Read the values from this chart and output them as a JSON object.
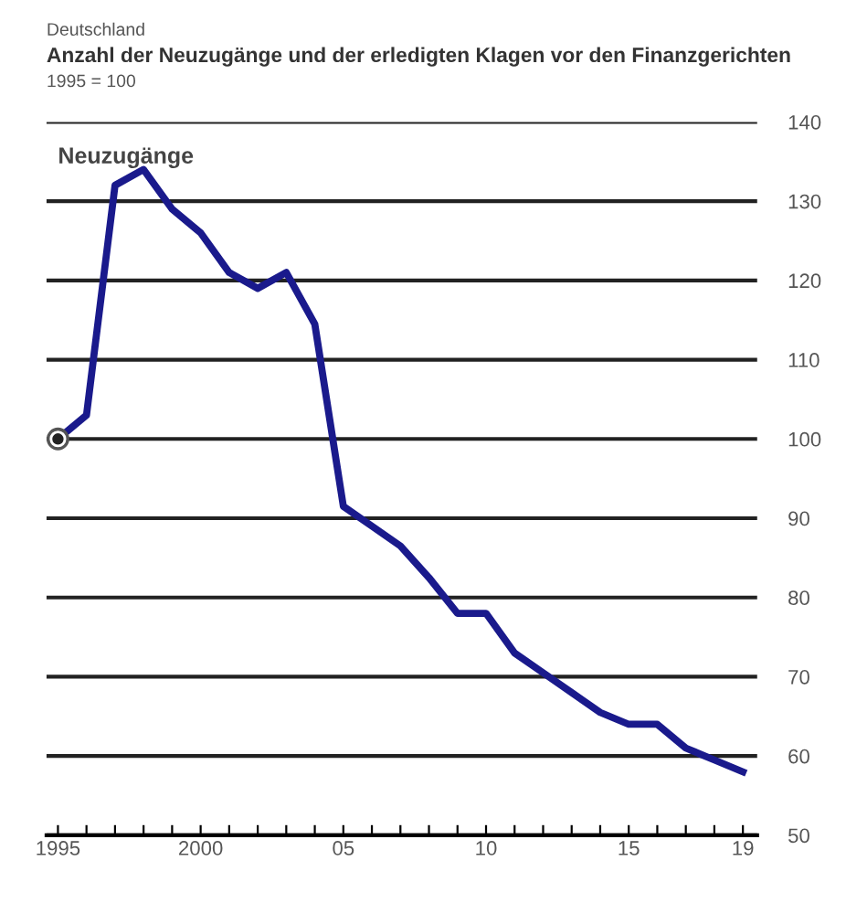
{
  "chart_data": {
    "type": "line",
    "title": "Anzahl der Neuzugänge und der erledigten Klagen vor den Finanzgerichten",
    "ylabel": "1995 = 100",
    "annotations": [
      "Deutschland"
    ],
    "series": [
      {
        "name": "Neuzugänge",
        "color": "#1a1a8c",
        "x": [
          1995,
          1996,
          1997,
          1998,
          1999,
          2000,
          2001,
          2002,
          2003,
          2004,
          2005,
          2006,
          2007,
          2008,
          2009,
          2010,
          2011,
          2012,
          2013,
          2014,
          2015,
          2016,
          2017,
          2018,
          2019
        ],
        "values": [
          100,
          103,
          132,
          134,
          129,
          126,
          121,
          119,
          121,
          114.5,
          91.5,
          89,
          86.5,
          82.5,
          78,
          78,
          73,
          70.5,
          68,
          65.5,
          64,
          64,
          61,
          59.5,
          58
        ]
      },
      {
        "type": "scatter",
        "color": "#222222",
        "marker": "circle",
        "x": [
          1995
        ],
        "values": [
          100
        ]
      }
    ],
    "xlim": [
      1994.6,
      2019.5
    ],
    "ylim": [
      50,
      140
    ],
    "xticks": [
      1995,
      {
        "value": 1996,
        "label": null
      },
      {
        "value": 1997,
        "label": null
      },
      {
        "value": 1998,
        "label": null
      },
      {
        "value": 1999,
        "label": null
      },
      2000,
      {
        "value": 2001,
        "label": null
      },
      {
        "value": 2002,
        "label": null
      },
      {
        "value": 2003,
        "label": null
      },
      {
        "value": 2004,
        "label": null
      },
      {
        "value": 2005,
        "label": "05"
      },
      {
        "value": 2006,
        "label": null
      },
      {
        "value": 2007,
        "label": null
      },
      {
        "value": 2008,
        "label": null
      },
      {
        "value": 2009,
        "label": null
      },
      {
        "value": 2010,
        "label": "10"
      },
      {
        "value": 2011,
        "label": null
      },
      {
        "value": 2012,
        "label": null
      },
      {
        "value": 2013,
        "label": null
      },
      {
        "value": 2014,
        "label": null
      },
      {
        "value": 2015,
        "label": "15"
      },
      {
        "value": 2016,
        "label": null
      },
      {
        "value": 2017,
        "label": null
      },
      {
        "value": 2018,
        "label": null
      },
      {
        "value": 2019,
        "label": "19"
      }
    ],
    "yticks": [
      50,
      60,
      70,
      80,
      90,
      100,
      110,
      120,
      130,
      140
    ],
    "grid": "y",
    "legend": false,
    "line_style": "solid"
  }
}
